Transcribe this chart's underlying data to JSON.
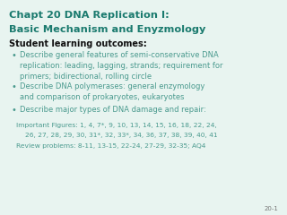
{
  "title_line1": "Chapt 20 DNA Replication I:",
  "title_line2": "Basic Mechanism and Enyzmology",
  "title_color": "#1a7a6e",
  "background_color": "#e8f4f0",
  "section_header": "Student learning outcomes:",
  "bullet_color": "#4a9a8e",
  "bullet_points": [
    "Describe general features of semi-conservative DNA\nreplication: leading, lagging, strands; requirement for\nprimers; bidirectional, rolling circle",
    "Describe DNA polymerases: general enzymology\nand comparison of prokaryotes, eukaryotes",
    "Describe major types of DNA damage and repair:"
  ],
  "important_figures_line1": "Important Figures: 1, 4, 7*, 9, 10, 13, 14, 15, 16, 18, 22, 24,",
  "important_figures_line2": "26, 27, 28, 29, 30, 31*, 32, 33*, 34, 36, 37, 38, 39, 40, 41",
  "review_problems": "Review problems: 8-11, 13-15, 22-24, 27-29, 32-35; AQ4",
  "footer_text": "20-1"
}
